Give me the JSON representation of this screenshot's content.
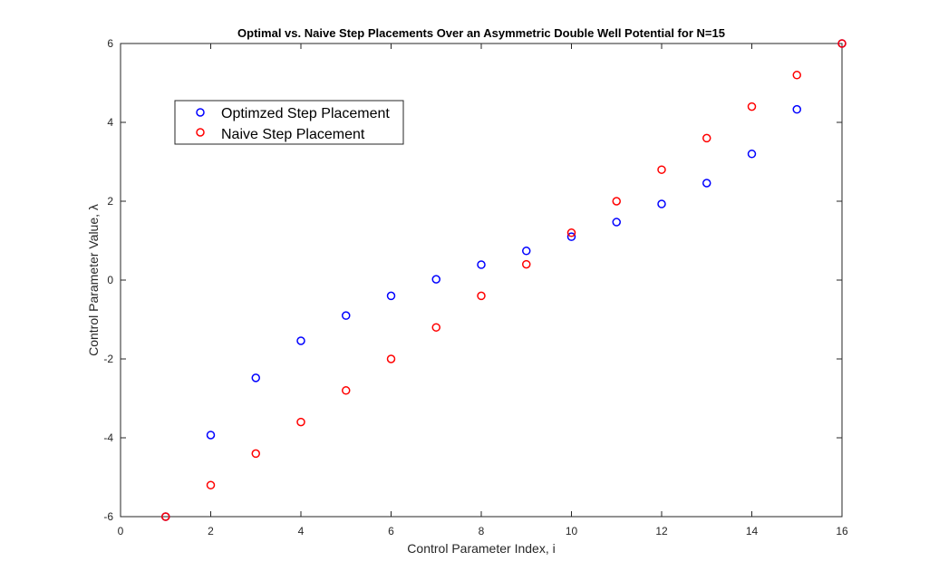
{
  "chart_data": {
    "type": "scatter",
    "title": "Optimal vs. Naive Step Placements Over an Asymmetric Double Well Potential for N=15",
    "xlabel": "Control Parameter Index, i",
    "ylabel": "Control Parameter Value, λ",
    "xlim": [
      0,
      16
    ],
    "ylim": [
      -6,
      6
    ],
    "xticks": [
      "0",
      "2",
      "4",
      "6",
      "8",
      "10",
      "12",
      "14",
      "16"
    ],
    "yticks": [
      "-6",
      "-4",
      "-2",
      "0",
      "2",
      "4",
      "6"
    ],
    "grid": false,
    "legend_position": "top-left",
    "series": [
      {
        "name": "Optimzed Step Placement",
        "color": "#0000ff",
        "marker": "circle",
        "x": [
          1,
          2,
          3,
          4,
          5,
          6,
          7,
          8,
          9,
          10,
          11,
          12,
          13,
          14,
          15,
          16
        ],
        "y": [
          -6,
          -3.93,
          -2.48,
          -1.54,
          -0.9,
          -0.4,
          0.02,
          0.39,
          0.74,
          1.1,
          1.47,
          1.93,
          2.46,
          3.2,
          4.33,
          6
        ]
      },
      {
        "name": "Naive Step Placement",
        "color": "#ff0000",
        "marker": "circle",
        "x": [
          1,
          2,
          3,
          4,
          5,
          6,
          7,
          8,
          9,
          10,
          11,
          12,
          13,
          14,
          15,
          16
        ],
        "y": [
          -6,
          -5.2,
          -4.4,
          -3.6,
          -2.8,
          -2.0,
          -1.2,
          -0.4,
          0.4,
          1.2,
          2.0,
          2.8,
          3.6,
          4.4,
          5.2,
          6
        ]
      }
    ]
  }
}
